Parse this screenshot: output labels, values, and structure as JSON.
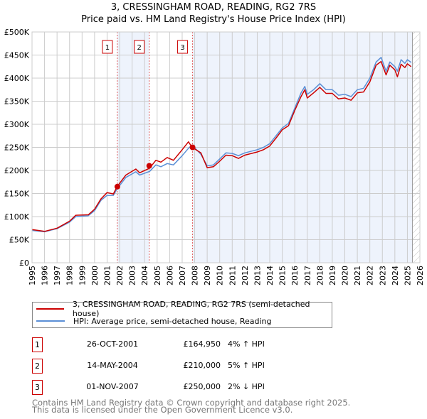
{
  "chart_data": {
    "type": "line",
    "title": "3, CRESSINGHAM ROAD, READING, RG2 7RS",
    "subtitle": "Price paid vs. HM Land Registry's House Price Index (HPI)",
    "xlim": [
      1995,
      2026
    ],
    "ylim": [
      0,
      500000
    ],
    "x_ticks": [
      "1995",
      "1996",
      "1997",
      "1998",
      "1999",
      "2000",
      "2001",
      "2002",
      "2003",
      "2004",
      "2005",
      "2006",
      "2007",
      "2008",
      "2009",
      "2010",
      "2011",
      "2012",
      "2013",
      "2014",
      "2015",
      "2016",
      "2017",
      "2018",
      "2019",
      "2020",
      "2021",
      "2022",
      "2023",
      "2024",
      "2025",
      "2026"
    ],
    "y_ticks": [
      {
        "v": 0,
        "label": "£0"
      },
      {
        "v": 50000,
        "label": "£50K"
      },
      {
        "v": 100000,
        "label": "£100K"
      },
      {
        "v": 150000,
        "label": "£150K"
      },
      {
        "v": 200000,
        "label": "£200K"
      },
      {
        "v": 250000,
        "label": "£250K"
      },
      {
        "v": 300000,
        "label": "£300K"
      },
      {
        "v": 350000,
        "label": "£350K"
      },
      {
        "v": 400000,
        "label": "£400K"
      },
      {
        "v": 450000,
        "label": "£450K"
      },
      {
        "v": 500000,
        "label": "£500K"
      }
    ],
    "grid": true,
    "x": [
      1995,
      1996,
      1997,
      1998,
      1998.5,
      1999.5,
      2000,
      2000.5,
      2001,
      2001.5,
      2001.8,
      2002.5,
      2003.3,
      2003.6,
      2004.4,
      2004.9,
      2005.3,
      2005.8,
      2006.3,
      2007,
      2007.5,
      2007.8,
      2008.5,
      2009,
      2009.5,
      2010,
      2010.5,
      2011,
      2011.5,
      2012,
      2013,
      2013.5,
      2014,
      2014.5,
      2015,
      2015.5,
      2016,
      2016.5,
      2016.8,
      2017,
      2017.5,
      2018,
      2018.5,
      2019,
      2019.5,
      2020,
      2020.5,
      2021,
      2021.5,
      2022,
      2022.5,
      2022.9,
      2023.3,
      2023.6,
      2024,
      2024.2,
      2024.5,
      2024.8,
      2025,
      2025.3
    ],
    "series": [
      {
        "name": "3, CRESSINGHAM ROAD, READING, RG2 7RS (semi-detached house)",
        "color": "#cc0000",
        "values": [
          72,
          68,
          75,
          90,
          103,
          104,
          116,
          138,
          152,
          149,
          165,
          190,
          203,
          195,
          205,
          222,
          218,
          228,
          222,
          245,
          262,
          250,
          238,
          206,
          208,
          220,
          233,
          232,
          226,
          233,
          240,
          245,
          253,
          270,
          288,
          297,
          330,
          360,
          375,
          357,
          368,
          380,
          367,
          367,
          355,
          357,
          352,
          368,
          370,
          392,
          428,
          436,
          407,
          428,
          418,
          403,
          430,
          423,
          431,
          425
        ]
      },
      {
        "name": "HPI: Average price, semi-detached house, Reading",
        "color": "#5b8fd6",
        "values": [
          70,
          67,
          74,
          88,
          100,
          102,
          113,
          135,
          146,
          146,
          160,
          185,
          197,
          190,
          198,
          212,
          208,
          215,
          212,
          232,
          248,
          255,
          235,
          210,
          212,
          225,
          238,
          237,
          232,
          238,
          245,
          250,
          258,
          275,
          292,
          302,
          335,
          368,
          382,
          365,
          375,
          388,
          375,
          375,
          363,
          365,
          360,
          375,
          378,
          400,
          435,
          445,
          415,
          435,
          425,
          415,
          440,
          432,
          440,
          434
        ]
      }
    ],
    "value_unit": "thousand GBP",
    "sales": [
      {
        "n": "1",
        "x": 2001.82,
        "price": 164950
      },
      {
        "n": "2",
        "x": 2004.37,
        "price": 210000
      },
      {
        "n": "3",
        "x": 2007.83,
        "price": 250000
      }
    ],
    "data_end": 2025.4,
    "legend_position": "below"
  },
  "transactions": [
    {
      "n": "1",
      "date": "26-OCT-2001",
      "price": "£164,950",
      "hpi": "4% ↑ HPI"
    },
    {
      "n": "2",
      "date": "14-MAY-2004",
      "price": "£210,000",
      "hpi": "5% ↑ HPI"
    },
    {
      "n": "3",
      "date": "01-NOV-2007",
      "price": "£250,000",
      "hpi": "2% ↓ HPI"
    }
  ],
  "footer": [
    "Contains HM Land Registry data © Crown copyright and database right 2025.",
    "This data is licensed under the Open Government Licence v3.0."
  ]
}
